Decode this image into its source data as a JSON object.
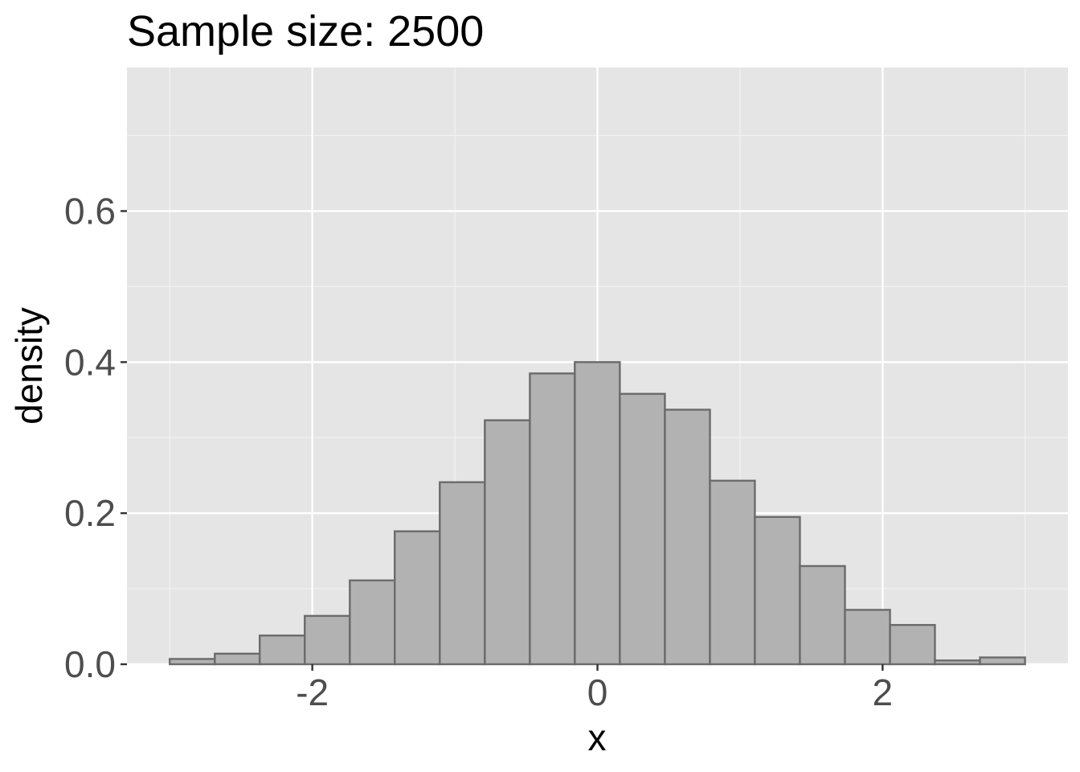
{
  "chart_data": {
    "type": "bar",
    "title": "Sample size: 2500",
    "xlabel": "x",
    "ylabel": "density",
    "xlim": [
      -3.3,
      3.3
    ],
    "ylim": [
      0,
      0.79
    ],
    "x_ticks": [
      -2,
      0,
      2
    ],
    "x_tick_labels": [
      "-2",
      "0",
      "2"
    ],
    "x_minor_ticks": [
      -3,
      -1,
      1,
      3
    ],
    "y_ticks": [
      0,
      0.2,
      0.4,
      0.6
    ],
    "y_tick_labels": [
      "0.0",
      "0.2",
      "0.4",
      "0.6"
    ],
    "y_minor_ticks": [
      0.1,
      0.3,
      0.5,
      0.7
    ],
    "grid": true,
    "bin_width": 0.3157,
    "bins": [
      {
        "x0": -3.0,
        "x1": -2.684,
        "density": 0.007
      },
      {
        "x0": -2.684,
        "x1": -2.369,
        "density": 0.014
      },
      {
        "x0": -2.369,
        "x1": -2.053,
        "density": 0.038
      },
      {
        "x0": -2.053,
        "x1": -1.737,
        "density": 0.064
      },
      {
        "x0": -1.737,
        "x1": -1.422,
        "density": 0.111
      },
      {
        "x0": -1.422,
        "x1": -1.106,
        "density": 0.176
      },
      {
        "x0": -1.106,
        "x1": -0.79,
        "density": 0.241
      },
      {
        "x0": -0.79,
        "x1": -0.474,
        "density": 0.323
      },
      {
        "x0": -0.474,
        "x1": -0.159,
        "density": 0.385
      },
      {
        "x0": -0.159,
        "x1": 0.157,
        "density": 0.4
      },
      {
        "x0": 0.157,
        "x1": 0.473,
        "density": 0.358
      },
      {
        "x0": 0.473,
        "x1": 0.789,
        "density": 0.337
      },
      {
        "x0": 0.789,
        "x1": 1.104,
        "density": 0.243
      },
      {
        "x0": 1.104,
        "x1": 1.42,
        "density": 0.195
      },
      {
        "x0": 1.42,
        "x1": 1.736,
        "density": 0.13
      },
      {
        "x0": 1.736,
        "x1": 2.052,
        "density": 0.072
      },
      {
        "x0": 2.052,
        "x1": 2.367,
        "density": 0.052
      },
      {
        "x0": 2.367,
        "x1": 2.683,
        "density": 0.005
      },
      {
        "x0": 2.683,
        "x1": 2.999,
        "density": 0.009
      }
    ],
    "colors": {
      "panel_background": "#e5e5e5",
      "grid_major": "#ffffff",
      "grid_minor": "#f2f2f2",
      "bar_fill": "#b2b2b2",
      "bar_stroke": "#6b6b6b",
      "tick_mark": "#333333"
    }
  }
}
